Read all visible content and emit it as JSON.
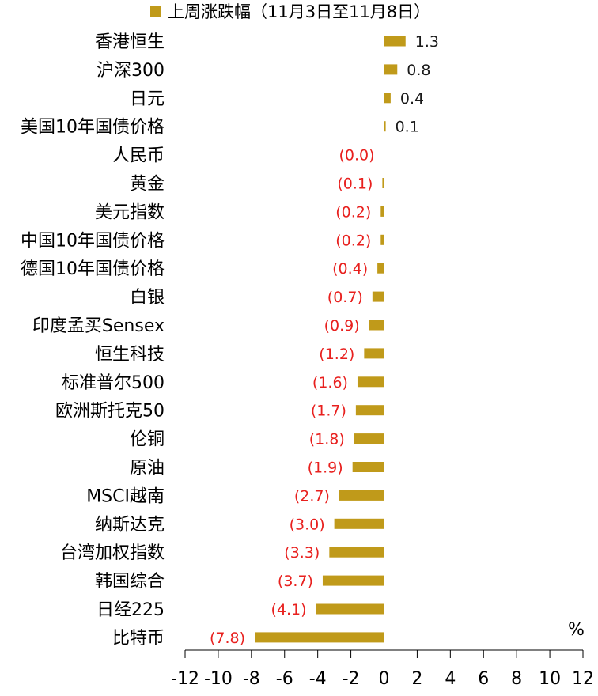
{
  "chart_data": {
    "type": "bar",
    "orientation": "horizontal",
    "legend": {
      "label": "上周涨跌幅（11月3日至11月8日）",
      "position": "top"
    },
    "unit_label": "%",
    "categories": [
      "香港恒生",
      "沪深300",
      "日元",
      "美国10年国债价格",
      "人民币",
      "黄金",
      "美元指数",
      "中国10年国债价格",
      "德国10年国债价格",
      "白银",
      "印度孟买Sensex",
      "恒生科技",
      "标准普尔500",
      "欧洲斯托克50",
      "伦铜",
      "原油",
      "MSCI越南",
      "纳斯达克",
      "台湾加权指数",
      "韩国综合",
      "日经225",
      "比特币"
    ],
    "values": [
      1.3,
      0.8,
      0.4,
      0.1,
      0.0,
      -0.1,
      -0.2,
      -0.2,
      -0.4,
      -0.7,
      -0.9,
      -1.2,
      -1.6,
      -1.7,
      -1.8,
      -1.9,
      -2.7,
      -3.0,
      -3.3,
      -3.7,
      -4.1,
      -7.8
    ],
    "data_labels": [
      "1.3",
      "0.8",
      "0.4",
      "0.1",
      "(0.0)",
      "(0.1)",
      "(0.2)",
      "(0.2)",
      "(0.4)",
      "(0.7)",
      "(0.9)",
      "(1.2)",
      "(1.6)",
      "(1.7)",
      "(1.8)",
      "(1.9)",
      "(2.7)",
      "(3.0)",
      "(3.3)",
      "(3.7)",
      "(4.1)",
      "(7.8)"
    ],
    "xlim": [
      -12,
      12
    ],
    "xticks": [
      -12,
      -10,
      -8,
      -6,
      -4,
      -2,
      0,
      2,
      4,
      6,
      8,
      10,
      12
    ],
    "xtick_labels": [
      "-12",
      "-10",
      "-8",
      "-6",
      "-4",
      "-2",
      "0",
      "2",
      "4",
      "6",
      "8",
      "10",
      "12"
    ],
    "grid": false,
    "colors": {
      "bar": "#C09A1A",
      "positive_label": "#1a1a1a",
      "negative_label": "#E8201E",
      "axis": "#000000",
      "text": "#000000"
    }
  }
}
